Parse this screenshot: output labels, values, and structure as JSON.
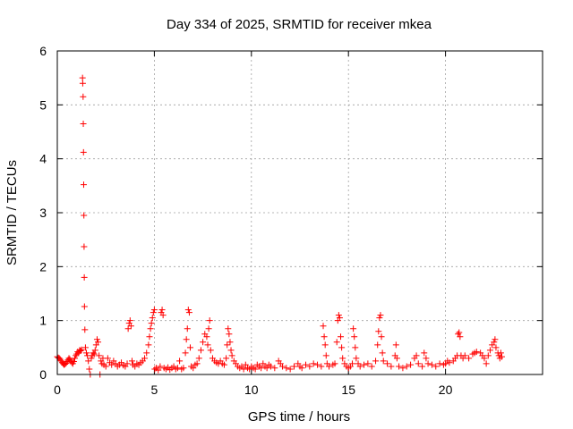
{
  "chart_data": {
    "type": "scatter",
    "title": "Day 334 of 2025, SRMTID for receiver mkea",
    "xlabel": "GPS time / hours",
    "ylabel": "SRMTID / TECUs",
    "xlim": [
      0,
      25
    ],
    "ylim": [
      0,
      6
    ],
    "x_ticks": [
      0,
      5,
      10,
      15,
      20
    ],
    "y_ticks": [
      0,
      1,
      2,
      3,
      4,
      5,
      6
    ],
    "grid": true,
    "marker": "plus",
    "color": "#ff0000",
    "series": [
      {
        "points": [
          [
            0.0,
            0.33
          ],
          [
            0.05,
            0.31
          ],
          [
            0.1,
            0.3
          ],
          [
            0.15,
            0.28
          ],
          [
            0.2,
            0.25
          ],
          [
            0.25,
            0.22
          ],
          [
            0.3,
            0.2
          ],
          [
            0.35,
            0.18
          ],
          [
            0.4,
            0.19
          ],
          [
            0.45,
            0.21
          ],
          [
            0.5,
            0.24
          ],
          [
            0.55,
            0.27
          ],
          [
            0.6,
            0.3
          ],
          [
            0.65,
            0.28
          ],
          [
            0.7,
            0.25
          ],
          [
            0.75,
            0.22
          ],
          [
            0.8,
            0.2
          ],
          [
            0.85,
            0.24
          ],
          [
            0.9,
            0.3
          ],
          [
            0.95,
            0.35
          ],
          [
            1.0,
            0.38
          ],
          [
            1.05,
            0.42
          ],
          [
            1.1,
            0.4
          ],
          [
            1.15,
            0.45
          ],
          [
            1.2,
            0.44
          ],
          [
            1.25,
            0.46
          ],
          [
            1.3,
            5.5
          ],
          [
            1.31,
            5.4
          ],
          [
            1.33,
            5.15
          ],
          [
            1.34,
            4.65
          ],
          [
            1.35,
            4.12
          ],
          [
            1.36,
            3.52
          ],
          [
            1.37,
            2.95
          ],
          [
            1.38,
            2.37
          ],
          [
            1.39,
            1.8
          ],
          [
            1.4,
            1.26
          ],
          [
            1.42,
            0.83
          ],
          [
            1.45,
            0.5
          ],
          [
            1.5,
            0.4
          ],
          [
            1.55,
            0.35
          ],
          [
            1.6,
            0.25
          ],
          [
            1.65,
            0.1
          ],
          [
            1.7,
            0.0
          ],
          [
            1.75,
            0.3
          ],
          [
            1.8,
            0.35
          ],
          [
            1.85,
            0.4
          ],
          [
            1.9,
            0.38
          ],
          [
            1.95,
            0.45
          ],
          [
            2.0,
            0.55
          ],
          [
            2.05,
            0.65
          ],
          [
            2.1,
            0.6
          ],
          [
            2.15,
            0.35
          ],
          [
            2.2,
            0.0
          ],
          [
            2.25,
            0.25
          ],
          [
            2.3,
            0.2
          ],
          [
            2.35,
            0.3
          ],
          [
            2.4,
            0.18
          ],
          [
            2.5,
            0.15
          ],
          [
            2.6,
            0.3
          ],
          [
            2.7,
            0.22
          ],
          [
            2.8,
            0.18
          ],
          [
            2.9,
            0.25
          ],
          [
            3.0,
            0.2
          ],
          [
            3.1,
            0.15
          ],
          [
            3.2,
            0.18
          ],
          [
            3.3,
            0.22
          ],
          [
            3.4,
            0.17
          ],
          [
            3.5,
            0.15
          ],
          [
            3.6,
            0.2
          ],
          [
            3.65,
            0.85
          ],
          [
            3.7,
            0.95
          ],
          [
            3.75,
            1.0
          ],
          [
            3.8,
            0.9
          ],
          [
            3.85,
            0.25
          ],
          [
            3.9,
            0.18
          ],
          [
            4.0,
            0.15
          ],
          [
            4.1,
            0.2
          ],
          [
            4.2,
            0.18
          ],
          [
            4.3,
            0.22
          ],
          [
            4.4,
            0.25
          ],
          [
            4.5,
            0.3
          ],
          [
            4.6,
            0.4
          ],
          [
            4.7,
            0.55
          ],
          [
            4.75,
            0.7
          ],
          [
            4.8,
            0.85
          ],
          [
            4.85,
            0.95
          ],
          [
            4.9,
            1.05
          ],
          [
            4.95,
            1.15
          ],
          [
            5.0,
            1.2
          ],
          [
            5.02,
            0.1
          ],
          [
            5.1,
            0.12
          ],
          [
            5.2,
            0.08
          ],
          [
            5.3,
            0.15
          ],
          [
            5.35,
            1.15
          ],
          [
            5.4,
            1.2
          ],
          [
            5.45,
            1.1
          ],
          [
            5.5,
            0.12
          ],
          [
            5.6,
            0.1
          ],
          [
            5.7,
            0.13
          ],
          [
            5.8,
            0.09
          ],
          [
            5.9,
            0.12
          ],
          [
            6.0,
            0.15
          ],
          [
            6.1,
            0.1
          ],
          [
            6.2,
            0.12
          ],
          [
            6.3,
            0.25
          ],
          [
            6.4,
            0.1
          ],
          [
            6.5,
            0.12
          ],
          [
            6.6,
            0.4
          ],
          [
            6.65,
            0.65
          ],
          [
            6.7,
            0.85
          ],
          [
            6.75,
            1.2
          ],
          [
            6.8,
            1.15
          ],
          [
            6.85,
            0.5
          ],
          [
            6.9,
            0.15
          ],
          [
            7.0,
            0.12
          ],
          [
            7.1,
            0.18
          ],
          [
            7.2,
            0.2
          ],
          [
            7.3,
            0.3
          ],
          [
            7.4,
            0.45
          ],
          [
            7.5,
            0.6
          ],
          [
            7.6,
            0.75
          ],
          [
            7.7,
            0.7
          ],
          [
            7.75,
            0.55
          ],
          [
            7.8,
            0.85
          ],
          [
            7.85,
            1.0
          ],
          [
            7.9,
            0.45
          ],
          [
            8.0,
            0.3
          ],
          [
            8.1,
            0.25
          ],
          [
            8.2,
            0.22
          ],
          [
            8.3,
            0.2
          ],
          [
            8.4,
            0.25
          ],
          [
            8.5,
            0.2
          ],
          [
            8.6,
            0.18
          ],
          [
            8.7,
            0.3
          ],
          [
            8.75,
            0.55
          ],
          [
            8.8,
            0.85
          ],
          [
            8.85,
            0.75
          ],
          [
            8.9,
            0.6
          ],
          [
            8.95,
            0.45
          ],
          [
            9.0,
            0.35
          ],
          [
            9.1,
            0.25
          ],
          [
            9.2,
            0.2
          ],
          [
            9.3,
            0.15
          ],
          [
            9.4,
            0.12
          ],
          [
            9.5,
            0.15
          ],
          [
            9.6,
            0.1
          ],
          [
            9.7,
            0.18
          ],
          [
            9.8,
            0.12
          ],
          [
            9.9,
            0.1
          ],
          [
            10.0,
            0.15
          ],
          [
            10.1,
            0.12
          ],
          [
            10.2,
            0.1
          ],
          [
            10.3,
            0.18
          ],
          [
            10.4,
            0.15
          ],
          [
            10.5,
            0.12
          ],
          [
            10.6,
            0.2
          ],
          [
            10.7,
            0.15
          ],
          [
            10.8,
            0.12
          ],
          [
            10.9,
            0.18
          ],
          [
            11.0,
            0.15
          ],
          [
            11.2,
            0.12
          ],
          [
            11.4,
            0.25
          ],
          [
            11.5,
            0.2
          ],
          [
            11.6,
            0.15
          ],
          [
            11.8,
            0.12
          ],
          [
            12.0,
            0.1
          ],
          [
            12.2,
            0.15
          ],
          [
            12.4,
            0.2
          ],
          [
            12.5,
            0.15
          ],
          [
            12.6,
            0.12
          ],
          [
            12.8,
            0.18
          ],
          [
            13.0,
            0.15
          ],
          [
            13.2,
            0.2
          ],
          [
            13.4,
            0.18
          ],
          [
            13.6,
            0.15
          ],
          [
            13.7,
            0.9
          ],
          [
            13.75,
            0.7
          ],
          [
            13.8,
            0.55
          ],
          [
            13.85,
            0.35
          ],
          [
            13.9,
            0.2
          ],
          [
            14.0,
            0.15
          ],
          [
            14.2,
            0.18
          ],
          [
            14.3,
            0.2
          ],
          [
            14.4,
            0.6
          ],
          [
            14.45,
            1.0
          ],
          [
            14.5,
            1.1
          ],
          [
            14.55,
            1.05
          ],
          [
            14.6,
            0.7
          ],
          [
            14.65,
            0.5
          ],
          [
            14.7,
            0.3
          ],
          [
            14.8,
            0.2
          ],
          [
            14.9,
            0.15
          ],
          [
            15.0,
            0.12
          ],
          [
            15.1,
            0.15
          ],
          [
            15.2,
            0.2
          ],
          [
            15.25,
            0.85
          ],
          [
            15.3,
            0.7
          ],
          [
            15.35,
            0.5
          ],
          [
            15.4,
            0.3
          ],
          [
            15.5,
            0.2
          ],
          [
            15.6,
            0.15
          ],
          [
            15.8,
            0.18
          ],
          [
            16.0,
            0.2
          ],
          [
            16.2,
            0.15
          ],
          [
            16.4,
            0.25
          ],
          [
            16.5,
            0.55
          ],
          [
            16.55,
            0.8
          ],
          [
            16.6,
            1.05
          ],
          [
            16.65,
            1.1
          ],
          [
            16.7,
            0.7
          ],
          [
            16.75,
            0.4
          ],
          [
            16.8,
            0.25
          ],
          [
            17.0,
            0.2
          ],
          [
            17.2,
            0.15
          ],
          [
            17.4,
            0.35
          ],
          [
            17.45,
            0.55
          ],
          [
            17.5,
            0.3
          ],
          [
            17.6,
            0.15
          ],
          [
            17.8,
            0.12
          ],
          [
            18.0,
            0.15
          ],
          [
            18.2,
            0.18
          ],
          [
            18.4,
            0.3
          ],
          [
            18.5,
            0.35
          ],
          [
            18.6,
            0.2
          ],
          [
            18.8,
            0.15
          ],
          [
            18.9,
            0.4
          ],
          [
            19.0,
            0.3
          ],
          [
            19.1,
            0.2
          ],
          [
            19.3,
            0.18
          ],
          [
            19.5,
            0.15
          ],
          [
            19.7,
            0.2
          ],
          [
            19.9,
            0.18
          ],
          [
            20.0,
            0.2
          ],
          [
            20.1,
            0.25
          ],
          [
            20.2,
            0.22
          ],
          [
            20.4,
            0.25
          ],
          [
            20.5,
            0.3
          ],
          [
            20.6,
            0.35
          ],
          [
            20.65,
            0.75
          ],
          [
            20.7,
            0.78
          ],
          [
            20.75,
            0.7
          ],
          [
            20.8,
            0.35
          ],
          [
            20.9,
            0.3
          ],
          [
            21.0,
            0.35
          ],
          [
            21.2,
            0.3
          ],
          [
            21.4,
            0.38
          ],
          [
            21.5,
            0.4
          ],
          [
            21.6,
            0.42
          ],
          [
            21.8,
            0.4
          ],
          [
            21.9,
            0.35
          ],
          [
            22.0,
            0.3
          ],
          [
            22.1,
            0.2
          ],
          [
            22.2,
            0.35
          ],
          [
            22.3,
            0.45
          ],
          [
            22.4,
            0.55
          ],
          [
            22.5,
            0.6
          ],
          [
            22.55,
            0.65
          ],
          [
            22.6,
            0.5
          ],
          [
            22.7,
            0.4
          ],
          [
            22.75,
            0.35
          ],
          [
            22.8,
            0.3
          ],
          [
            22.85,
            0.4
          ],
          [
            22.9,
            0.33
          ]
        ]
      }
    ]
  }
}
